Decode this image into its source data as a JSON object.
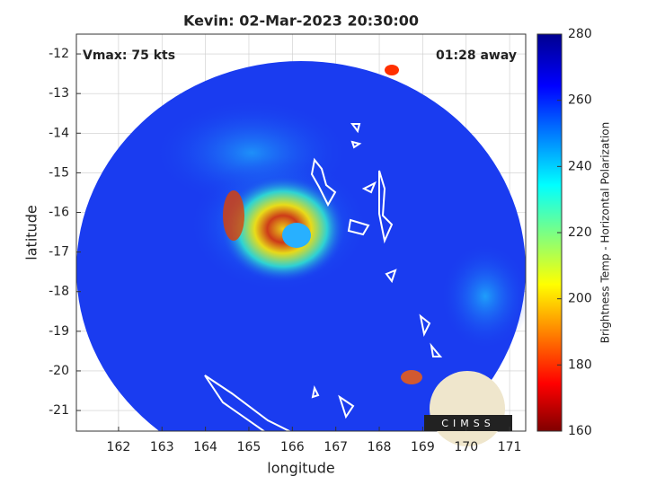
{
  "chart_data": {
    "type": "map",
    "title": "Kevin: 02-Mar-2023 20:30:00",
    "annotations": [
      "Vmax: 75 kts",
      "01:28 away"
    ],
    "xlabel": "longitude",
    "ylabel": "latitude",
    "xlim": [
      161.03,
      171.37
    ],
    "xticks": [
      162,
      163,
      164,
      165,
      166,
      167,
      168,
      169,
      170,
      171
    ],
    "ylim": [
      -21.52,
      -11.5
    ],
    "yticks": [
      -21,
      -20,
      -19,
      -18,
      -17,
      -16,
      -15,
      -14,
      -13,
      -12
    ],
    "grid": true,
    "colorbar": {
      "label": "Brightness Temp - Horizontal Polarization",
      "clim": [
        160,
        280
      ],
      "ticks": [
        160,
        180,
        200,
        220,
        240,
        260,
        280
      ]
    },
    "logo": "CIMSS"
  }
}
